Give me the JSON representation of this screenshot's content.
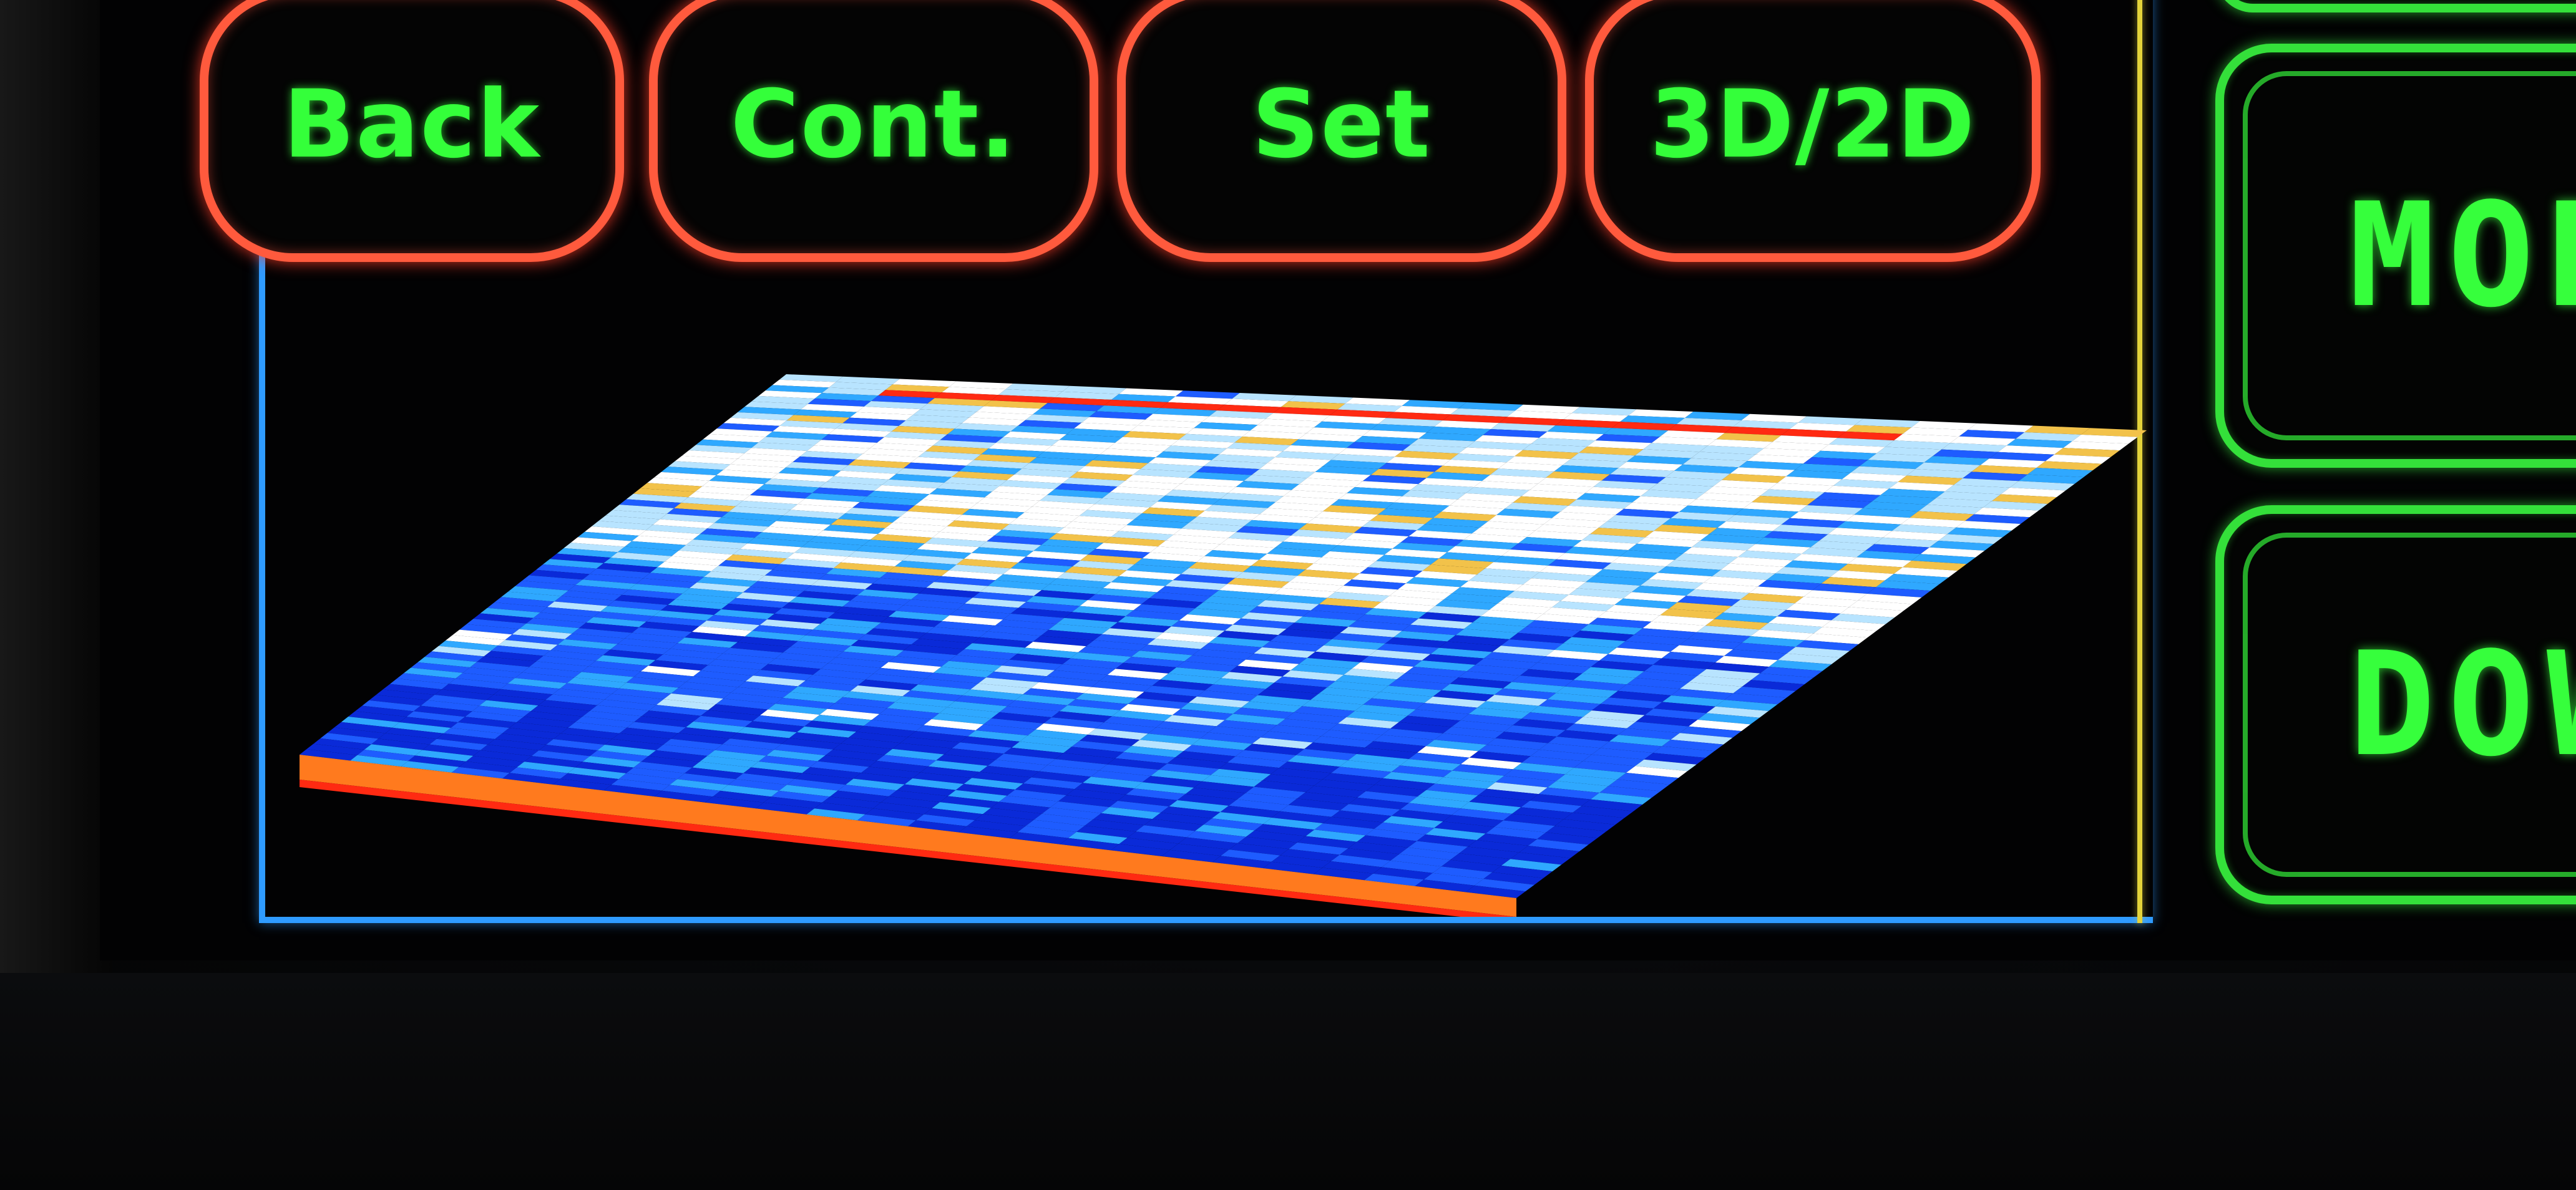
{
  "toolbar": {
    "back_label": "Back",
    "cont_label": "Cont.",
    "set_label": "Set",
    "view_toggle_label": "3D/2D"
  },
  "side_panel": {
    "mode_label": "MODE",
    "down_label": "DOWN"
  },
  "colors": {
    "button_border": "#ff5a3d",
    "button_text": "#34ff3a",
    "side_border": "#34e03a",
    "frame": "#2f9bff",
    "divider": "#e3d33a"
  },
  "plot": {
    "type": "3d-waterfall",
    "palette": [
      "#0a2ad8",
      "#1e5cff",
      "#2fa8ff",
      "#b8e4ff",
      "#ffffff",
      "#f2c24a",
      "#ff7a1e",
      "#ff2a12"
    ]
  }
}
